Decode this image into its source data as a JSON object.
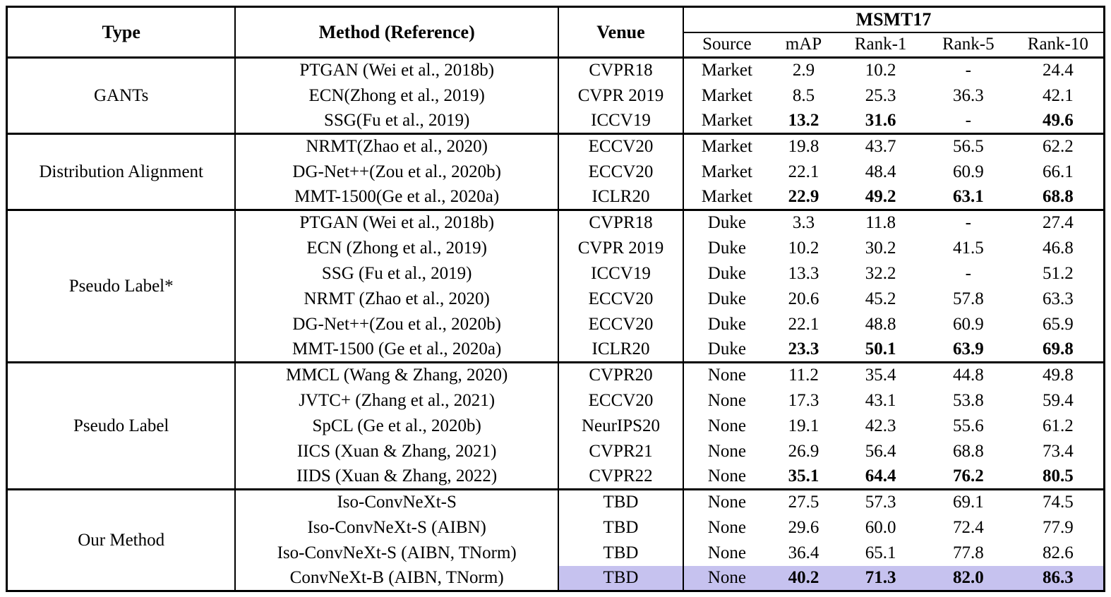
{
  "table": {
    "group_header": "MSMT17",
    "columns": [
      "Type",
      "Method (Reference)",
      "Venue"
    ],
    "sub_columns": [
      "Source",
      "mAP",
      "Rank-1",
      "Rank-5",
      "Rank-10"
    ],
    "colors": {
      "highlight": "#c6c2ef",
      "border": "#000000",
      "text": "#000000",
      "background": "#ffffff"
    },
    "sections": [
      {
        "type": "GANTs",
        "rows": [
          {
            "method": "PTGAN (Wei et al., 2018b)",
            "venue": "CVPR18",
            "source": "Market",
            "map": "2.9",
            "rank1": "10.2",
            "rank5": "-",
            "rank10": "24.4"
          },
          {
            "method": "ECN(Zhong et al., 2019)",
            "venue": "CVPR 2019",
            "source": "Market",
            "map": "8.5",
            "rank1": "25.3",
            "rank5": "36.3",
            "rank10": "42.1"
          },
          {
            "method": "SSG(Fu et al., 2019)",
            "venue": "ICCV19",
            "source": "Market",
            "map": "13.2",
            "rank1": "31.6",
            "rank5": "-",
            "rank10": "49.6",
            "bold": true
          }
        ]
      },
      {
        "type": "Distribution Alignment",
        "rows": [
          {
            "method": "NRMT(Zhao et al., 2020)",
            "venue": "ECCV20",
            "source": "Market",
            "map": "19.8",
            "rank1": "43.7",
            "rank5": "56.5",
            "rank10": "62.2"
          },
          {
            "method": "DG-Net++(Zou et al., 2020b)",
            "venue": "ECCV20",
            "source": "Market",
            "map": "22.1",
            "rank1": "48.4",
            "rank5": "60.9",
            "rank10": "66.1"
          },
          {
            "method": "MMT-1500(Ge et al., 2020a)",
            "venue": "ICLR20",
            "source": "Market",
            "map": "22.9",
            "rank1": "49.2",
            "rank5": "63.1",
            "rank10": "68.8",
            "bold": true
          }
        ]
      },
      {
        "type": "Pseudo Label*",
        "rows": [
          {
            "method": "PTGAN (Wei et al., 2018b)",
            "venue": "CVPR18",
            "source": "Duke",
            "map": "3.3",
            "rank1": "11.8",
            "rank5": "-",
            "rank10": "27.4"
          },
          {
            "method": "ECN (Zhong et al., 2019)",
            "venue": "CVPR 2019",
            "source": "Duke",
            "map": "10.2",
            "rank1": "30.2",
            "rank5": "41.5",
            "rank10": "46.8"
          },
          {
            "method": "SSG (Fu et al., 2019)",
            "venue": "ICCV19",
            "source": "Duke",
            "map": "13.3",
            "rank1": "32.2",
            "rank5": "-",
            "rank10": "51.2"
          },
          {
            "method": "NRMT (Zhao et al., 2020)",
            "venue": "ECCV20",
            "source": "Duke",
            "map": "20.6",
            "rank1": "45.2",
            "rank5": "57.8",
            "rank10": "63.3"
          },
          {
            "method": "DG-Net++(Zou et al., 2020b)",
            "venue": "ECCV20",
            "source": "Duke",
            "map": "22.1",
            "rank1": "48.8",
            "rank5": "60.9",
            "rank10": "65.9"
          },
          {
            "method": "MMT-1500 (Ge et al., 2020a)",
            "venue": "ICLR20",
            "source": "Duke",
            "map": "23.3",
            "rank1": "50.1",
            "rank5": "63.9",
            "rank10": "69.8",
            "bold": true
          }
        ]
      },
      {
        "type": "Pseudo Label",
        "rows": [
          {
            "method": "MMCL (Wang & Zhang, 2020)",
            "venue": "CVPR20",
            "source": "None",
            "map": "11.2",
            "rank1": "35.4",
            "rank5": "44.8",
            "rank10": "49.8"
          },
          {
            "method": "JVTC+ (Zhang et al., 2021)",
            "venue": "ECCV20",
            "source": "None",
            "map": "17.3",
            "rank1": "43.1",
            "rank5": "53.8",
            "rank10": "59.4"
          },
          {
            "method": "SpCL (Ge et al., 2020b)",
            "venue": "NeurIPS20",
            "source": "None",
            "map": "19.1",
            "rank1": "42.3",
            "rank5": "55.6",
            "rank10": "61.2"
          },
          {
            "method": "IICS (Xuan & Zhang, 2021)",
            "venue": "CVPR21",
            "source": "None",
            "map": "26.9",
            "rank1": "56.4",
            "rank5": "68.8",
            "rank10": "73.4"
          },
          {
            "method": "IIDS (Xuan & Zhang, 2022)",
            "venue": "CVPR22",
            "source": "None",
            "map": "35.1",
            "rank1": "64.4",
            "rank5": "76.2",
            "rank10": "80.5",
            "bold": true
          }
        ]
      },
      {
        "type": "Our Method",
        "rows": [
          {
            "method": "Iso-ConvNeXt-S",
            "venue": "TBD",
            "source": "None",
            "map": "27.5",
            "rank1": "57.3",
            "rank5": "69.1",
            "rank10": "74.5"
          },
          {
            "method": "Iso-ConvNeXt-S (AIBN)",
            "venue": "TBD",
            "source": "None",
            "map": "29.6",
            "rank1": "60.0",
            "rank5": "72.4",
            "rank10": "77.9"
          },
          {
            "method": "Iso-ConvNeXt-S (AIBN, TNorm)",
            "venue": "TBD",
            "source": "None",
            "map": "36.4",
            "rank1": "65.1",
            "rank5": "77.8",
            "rank10": "82.6"
          },
          {
            "method": "ConvNeXt-B (AIBN, TNorm)",
            "venue": "TBD",
            "source": "None",
            "map": "40.2",
            "rank1": "71.3",
            "rank5": "82.0",
            "rank10": "86.3",
            "bold": true,
            "highlight": true
          }
        ]
      }
    ]
  }
}
